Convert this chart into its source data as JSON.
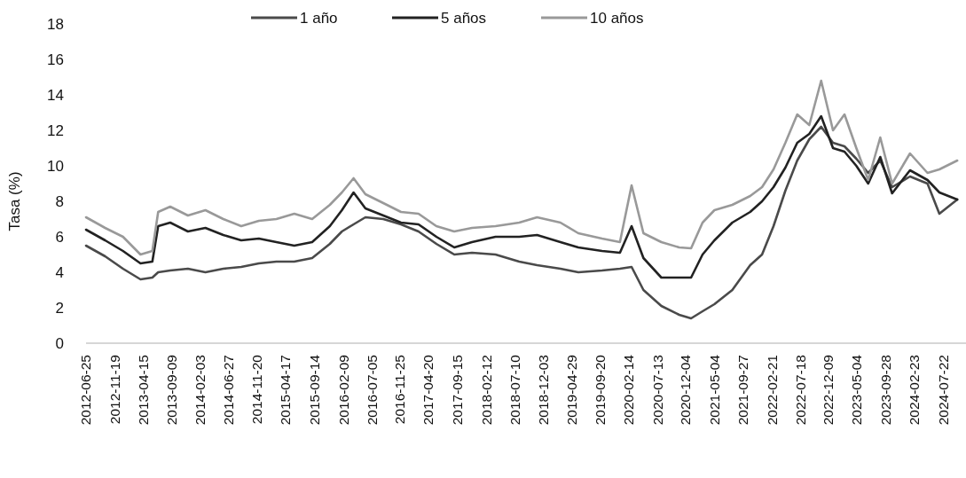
{
  "chart_data": {
    "type": "line",
    "ylabel": "Tasa (%)",
    "x": [
      "2012-06-25",
      "2012-10",
      "2013-01",
      "2013-04",
      "2013-06",
      "2013-07",
      "2013-09",
      "2013-12",
      "2014-03",
      "2014-06",
      "2014-09",
      "2014-12",
      "2015-03",
      "2015-06",
      "2015-09",
      "2015-12",
      "2016-02",
      "2016-04",
      "2016-06",
      "2016-09",
      "2016-12",
      "2017-03",
      "2017-06",
      "2017-09",
      "2017-12",
      "2018-04",
      "2018-08",
      "2018-11",
      "2019-03",
      "2019-06",
      "2019-10",
      "2020-01",
      "2020-03",
      "2020-05",
      "2020-08",
      "2020-11",
      "2021-01",
      "2021-03",
      "2021-05",
      "2021-08",
      "2021-11",
      "2022-01",
      "2022-03",
      "2022-05",
      "2022-07",
      "2022-09",
      "2022-11",
      "2023-01",
      "2023-03",
      "2023-05",
      "2023-07",
      "2023-09",
      "2023-11",
      "2024-02",
      "2024-05",
      "2024-07",
      "2024-10"
    ],
    "series": [
      {
        "name": "1 año",
        "color": "#4a4a4a",
        "values": [
          5.5,
          4.9,
          4.2,
          3.6,
          3.7,
          4.0,
          4.1,
          4.2,
          4.0,
          4.2,
          4.3,
          4.5,
          4.6,
          4.6,
          4.8,
          5.6,
          6.3,
          6.7,
          7.1,
          7.0,
          6.7,
          6.3,
          5.6,
          5.0,
          5.1,
          5.0,
          4.6,
          4.4,
          4.2,
          4.0,
          4.1,
          4.2,
          4.3,
          3.0,
          2.1,
          1.6,
          1.4,
          1.8,
          2.2,
          3.0,
          4.4,
          5.0,
          6.6,
          8.6,
          10.3,
          11.5,
          12.2,
          11.3,
          11.1,
          10.4,
          9.6,
          10.3,
          8.8,
          9.4,
          9.0,
          7.3,
          8.1
        ]
      },
      {
        "name": "5 años",
        "color": "#222222",
        "values": [
          6.4,
          5.8,
          5.2,
          4.5,
          4.6,
          6.6,
          6.8,
          6.3,
          6.5,
          6.1,
          5.8,
          5.9,
          5.7,
          5.5,
          5.7,
          6.6,
          7.5,
          8.5,
          7.6,
          7.2,
          6.8,
          6.7,
          6.0,
          5.4,
          5.7,
          6.0,
          6.0,
          6.1,
          5.7,
          5.4,
          5.2,
          5.1,
          6.6,
          4.8,
          3.7,
          3.7,
          3.7,
          5.0,
          5.8,
          6.8,
          7.4,
          8.0,
          8.8,
          9.9,
          11.3,
          11.8,
          12.8,
          11.0,
          10.8,
          10.0,
          9.0,
          10.5,
          8.45,
          9.75,
          9.2,
          8.5,
          8.1
        ]
      },
      {
        "name": "10 años",
        "color": "#999999",
        "values": [
          7.1,
          6.5,
          6.0,
          5.0,
          5.2,
          7.4,
          7.7,
          7.2,
          7.5,
          7.0,
          6.6,
          6.9,
          7.0,
          7.3,
          7.0,
          7.8,
          8.5,
          9.3,
          8.4,
          7.9,
          7.4,
          7.3,
          6.6,
          6.3,
          6.5,
          6.6,
          6.8,
          7.1,
          6.8,
          6.2,
          5.9,
          5.7,
          8.9,
          6.2,
          5.7,
          5.4,
          5.35,
          6.8,
          7.5,
          7.8,
          8.3,
          8.8,
          9.8,
          11.3,
          12.9,
          12.3,
          14.8,
          12.0,
          12.9,
          11.0,
          9.2,
          11.6,
          9.0,
          10.7,
          9.6,
          9.8,
          10.3
        ]
      }
    ],
    "xlim": [
      "2012-06-25",
      "2024-11-15"
    ],
    "xticks": [
      "2012-06-25",
      "2012-11-19",
      "2013-04-15",
      "2013-09-09",
      "2014-02-03",
      "2014-06-27",
      "2014-11-20",
      "2015-04-17",
      "2015-09-14",
      "2016-02-09",
      "2016-07-05",
      "2016-11-25",
      "2017-04-20",
      "2017-09-15",
      "2018-02-12",
      "2018-07-10",
      "2018-12-03",
      "2019-04-29",
      "2019-09-20",
      "2020-02-14",
      "2020-07-13",
      "2020-12-04",
      "2021-05-04",
      "2021-09-27",
      "2022-02-21",
      "2022-07-18",
      "2022-12-09",
      "2023-05-04",
      "2023-09-28",
      "2024-02-23",
      "2024-07-22"
    ],
    "ylim": [
      0,
      18
    ],
    "yticks": [
      0,
      2,
      4,
      6,
      8,
      10,
      12,
      14,
      16,
      18
    ],
    "legend": "top",
    "grid": false,
    "marker": "none",
    "line_style": "solid"
  }
}
